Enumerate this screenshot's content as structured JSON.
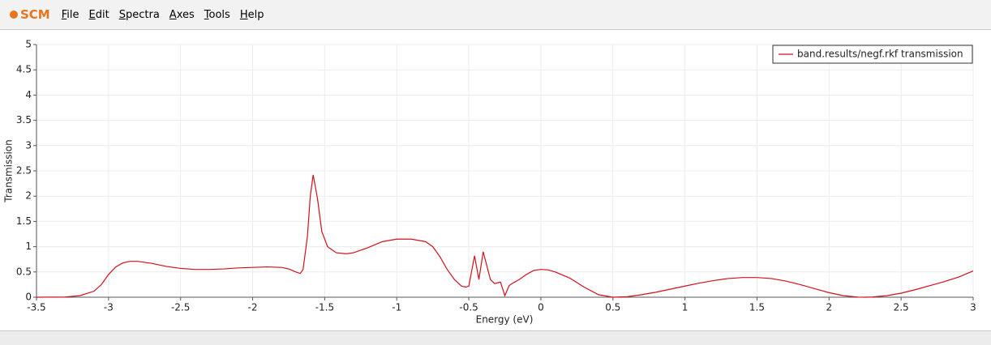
{
  "app": {
    "logo": "SCM",
    "menu": [
      "File",
      "Edit",
      "Spectra",
      "Axes",
      "Tools",
      "Help"
    ]
  },
  "chart_data": {
    "type": "line",
    "x_label": "Energy (eV)",
    "y_label": "Transmission",
    "x": [
      -3.5,
      -3.3,
      -3.2,
      -3.1,
      -3.05,
      -3.0,
      -2.95,
      -2.9,
      -2.85,
      -2.8,
      -2.7,
      -2.6,
      -2.5,
      -2.4,
      -2.3,
      -2.2,
      -2.1,
      -2.0,
      -1.9,
      -1.8,
      -1.75,
      -1.7,
      -1.67,
      -1.65,
      -1.62,
      -1.6,
      -1.58,
      -1.55,
      -1.52,
      -1.48,
      -1.42,
      -1.35,
      -1.3,
      -1.2,
      -1.1,
      -1.0,
      -0.9,
      -0.8,
      -0.75,
      -0.7,
      -0.65,
      -0.6,
      -0.55,
      -0.52,
      -0.5,
      -0.46,
      -0.43,
      -0.4,
      -0.35,
      -0.32,
      -0.28,
      -0.25,
      -0.22,
      -0.2,
      -0.15,
      -0.1,
      -0.05,
      0,
      0.05,
      0.1,
      0.2,
      0.3,
      0.4,
      0.5,
      0.6,
      0.7,
      0.8,
      0.9,
      1.0,
      1.1,
      1.2,
      1.3,
      1.4,
      1.5,
      1.6,
      1.7,
      1.8,
      1.9,
      2.0,
      2.1,
      2.2,
      2.25,
      2.3,
      2.4,
      2.5,
      2.6,
      2.7,
      2.8,
      2.9,
      3.0
    ],
    "series": [
      {
        "name": "band.results/negf.rkf transmission",
        "color": "#d0101a",
        "values": [
          0,
          0.005,
          0.03,
          0.12,
          0.25,
          0.45,
          0.6,
          0.68,
          0.71,
          0.71,
          0.67,
          0.61,
          0.57,
          0.55,
          0.55,
          0.56,
          0.58,
          0.59,
          0.6,
          0.59,
          0.56,
          0.5,
          0.47,
          0.55,
          1.2,
          2.0,
          2.42,
          1.95,
          1.3,
          1.0,
          0.88,
          0.86,
          0.88,
          0.98,
          1.1,
          1.15,
          1.15,
          1.1,
          1.0,
          0.8,
          0.55,
          0.35,
          0.22,
          0.2,
          0.22,
          0.82,
          0.35,
          0.9,
          0.35,
          0.27,
          0.3,
          0.03,
          0.23,
          0.27,
          0.35,
          0.45,
          0.53,
          0.55,
          0.54,
          0.5,
          0.38,
          0.2,
          0.05,
          0,
          0.01,
          0.05,
          0.1,
          0.16,
          0.22,
          0.28,
          0.33,
          0.37,
          0.39,
          0.39,
          0.37,
          0.32,
          0.25,
          0.17,
          0.09,
          0.03,
          0.003,
          0,
          0.004,
          0.03,
          0.08,
          0.15,
          0.23,
          0.31,
          0.4,
          0.52
        ]
      }
    ],
    "xlim": [
      -3.5,
      3
    ],
    "ylim": [
      0,
      5
    ],
    "xticks": [
      -3.5,
      -3,
      -2.5,
      -2,
      -1.5,
      -1,
      -0.5,
      0,
      0.5,
      1,
      1.5,
      2,
      2.5,
      3
    ],
    "yticks": [
      0,
      0.5,
      1,
      1.5,
      2,
      2.5,
      3,
      3.5,
      4,
      4.5,
      5
    ],
    "grid": true,
    "legend": "upper-right"
  }
}
